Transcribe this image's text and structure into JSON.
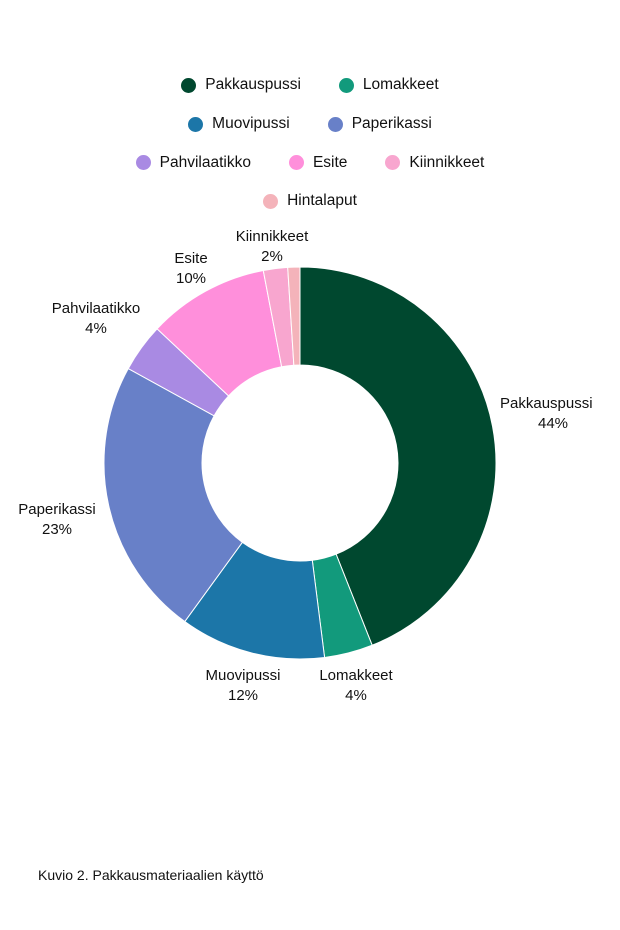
{
  "chart_data": {
    "type": "pie",
    "variant": "donut",
    "legend_position": "top",
    "categories": [
      "Pakkauspussi",
      "Lomakkeet",
      "Muovipussi",
      "Paperikassi",
      "Pahvilaatikko",
      "Esite",
      "Kiinnikkeet",
      "Hintalaput"
    ],
    "values": [
      44,
      4,
      12,
      23,
      4,
      10,
      2,
      1
    ],
    "value_labels": [
      "44%",
      "4%",
      "12%",
      "23%",
      "4%",
      "10%",
      "2%",
      ""
    ],
    "colors": [
      "#00482f",
      "#129a7c",
      "#1c76a8",
      "#6880c8",
      "#a98ae3",
      "#ff8fdb",
      "#f8a6cf",
      "#f4b3ba"
    ]
  },
  "legend_rows": [
    [
      0,
      1
    ],
    [
      2,
      3
    ],
    [
      4,
      5,
      6
    ],
    [
      7
    ]
  ],
  "caption": "Kuvio 2. Pakkausmateriaalien käyttö"
}
